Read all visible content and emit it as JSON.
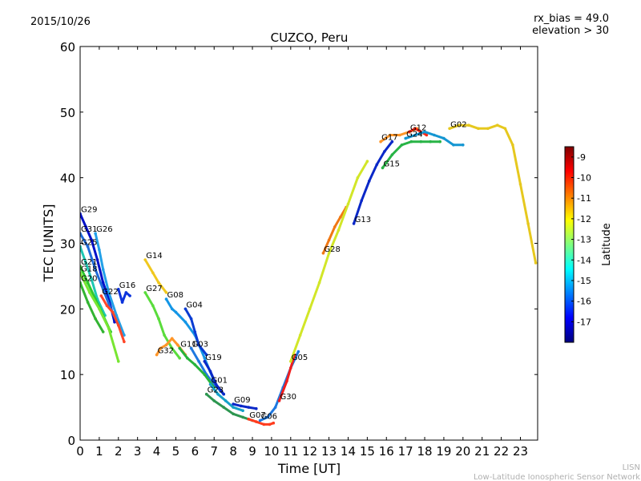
{
  "header": {
    "date": "2015/10/26",
    "rx_bias": "rx_bias = 49.0",
    "elevation": "elevation > 30"
  },
  "footer": {
    "network_short": "LISN",
    "network_full": "Low-Latitude Ionospheric Sensor Network"
  },
  "chart_data": {
    "type": "scatter",
    "title": "CUZCO, Peru",
    "xlabel": "Time [UT]",
    "ylabel": "TEC [UNITS]",
    "xlim": [
      0,
      23.9
    ],
    "ylim": [
      0,
      60
    ],
    "xticks": [
      "0",
      "1",
      "2",
      "3",
      "4",
      "5",
      "6",
      "7",
      "8",
      "9",
      "10",
      "11",
      "12",
      "13",
      "14",
      "15",
      "16",
      "17",
      "18",
      "19",
      "20",
      "21",
      "22",
      "23"
    ],
    "yticks": [
      "0",
      "10",
      "20",
      "30",
      "40",
      "50",
      "60"
    ],
    "grid": false,
    "colorbar": {
      "label": "Latitude",
      "range": [
        -18,
        -8.5
      ],
      "ticks": [
        "-9",
        "-10",
        "-11",
        "-12",
        "-13",
        "-14",
        "-15",
        "-16",
        "-17"
      ],
      "colormap": [
        "#00007f",
        "#0000ff",
        "#007fff",
        "#00ffff",
        "#7fff7f",
        "#ffff00",
        "#ff7f00",
        "#ff0000",
        "#7f0000"
      ]
    },
    "series": [
      {
        "name": "G29",
        "color": "#0010c8",
        "points": [
          [
            0.0,
            34.5
          ],
          [
            0.3,
            32.5
          ],
          [
            0.6,
            30.5
          ],
          [
            0.9,
            27.5
          ],
          [
            1.2,
            24.0
          ],
          [
            1.5,
            21.5
          ],
          [
            1.8,
            18.0
          ]
        ]
      },
      {
        "name": "G31",
        "color": "#1f6cd9",
        "points": [
          [
            0.0,
            31.5
          ],
          [
            0.4,
            29.5
          ],
          [
            0.8,
            26.0
          ],
          [
            1.2,
            23.0
          ],
          [
            1.6,
            20.0
          ],
          [
            2.0,
            17.5
          ]
        ]
      },
      {
        "name": "G26",
        "color": "#22a0e8",
        "points": [
          [
            0.8,
            31.5
          ],
          [
            1.0,
            29.0
          ],
          [
            1.2,
            26.0
          ],
          [
            1.5,
            22.5
          ],
          [
            1.9,
            19.0
          ],
          [
            2.3,
            16.0
          ]
        ]
      },
      {
        "name": "G25",
        "color": "#1ec8b4",
        "points": [
          [
            0.0,
            29.5
          ],
          [
            0.3,
            27.0
          ],
          [
            0.6,
            24.5
          ],
          [
            0.9,
            21.5
          ],
          [
            1.3,
            19.0
          ]
        ]
      },
      {
        "name": "G21",
        "color": "#2dc82d",
        "points": [
          [
            0.0,
            26.5
          ],
          [
            0.4,
            24.0
          ],
          [
            0.8,
            21.5
          ],
          [
            1.2,
            19.0
          ],
          [
            1.6,
            16.5
          ]
        ]
      },
      {
        "name": "G18",
        "color": "#78e632",
        "points": [
          [
            0.0,
            25.5
          ],
          [
            0.5,
            22.5
          ],
          [
            1.0,
            20.0
          ],
          [
            1.5,
            17.0
          ],
          [
            2.0,
            12.0
          ]
        ]
      },
      {
        "name": "G20",
        "color": "#32b432",
        "points": [
          [
            0.0,
            24.0
          ],
          [
            0.4,
            21.0
          ],
          [
            0.8,
            18.5
          ],
          [
            1.2,
            16.5
          ]
        ]
      },
      {
        "name": "G22",
        "color": "#ff4628",
        "points": [
          [
            1.1,
            22.0
          ],
          [
            1.4,
            20.5
          ],
          [
            1.7,
            19.5
          ],
          [
            2.0,
            17.5
          ],
          [
            2.3,
            15.0
          ]
        ]
      },
      {
        "name": "G16",
        "color": "#0a32dc",
        "points": [
          [
            2.0,
            23.0
          ],
          [
            2.2,
            21.0
          ],
          [
            2.4,
            22.5
          ],
          [
            2.6,
            22.0
          ]
        ]
      },
      {
        "name": "G14",
        "color": "#f0c81e",
        "points": [
          [
            3.4,
            27.5
          ],
          [
            3.8,
            25.5
          ],
          [
            4.1,
            24.0
          ],
          [
            4.5,
            22.5
          ]
        ]
      },
      {
        "name": "G27",
        "color": "#5adc3c",
        "points": [
          [
            3.4,
            22.5
          ],
          [
            3.8,
            20.5
          ],
          [
            4.1,
            18.5
          ],
          [
            4.4,
            16.0
          ],
          [
            4.8,
            14.0
          ],
          [
            5.2,
            12.5
          ]
        ]
      },
      {
        "name": "G32",
        "color": "#ff9628",
        "points": [
          [
            4.0,
            13.0
          ],
          [
            4.2,
            14.0
          ],
          [
            4.5,
            14.5
          ],
          [
            4.8,
            15.5
          ],
          [
            5.1,
            14.5
          ],
          [
            5.5,
            13.0
          ]
        ]
      },
      {
        "name": "G08",
        "color": "#1496e6",
        "points": [
          [
            4.5,
            21.5
          ],
          [
            4.8,
            20.0
          ],
          [
            5.0,
            19.5
          ],
          [
            5.5,
            18.0
          ],
          [
            6.0,
            16.0
          ],
          [
            6.5,
            12.5
          ],
          [
            7.0,
            9.0
          ]
        ]
      },
      {
        "name": "G04",
        "color": "#0a3cd2",
        "points": [
          [
            5.5,
            20.0
          ],
          [
            5.8,
            18.5
          ],
          [
            6.0,
            16.5
          ],
          [
            6.2,
            14.5
          ],
          [
            6.6,
            13.0
          ]
        ]
      },
      {
        "name": "G03",
        "color": "#1e78e0",
        "points": [
          [
            5.8,
            14.0
          ],
          [
            6.2,
            12.0
          ],
          [
            6.6,
            10.0
          ],
          [
            7.0,
            8.5
          ],
          [
            7.5,
            7.0
          ]
        ]
      },
      {
        "name": "G11",
        "color": "#28b43c",
        "points": [
          [
            5.2,
            14.0
          ],
          [
            5.6,
            12.5
          ],
          [
            6.0,
            11.5
          ],
          [
            6.5,
            10.0
          ],
          [
            7.0,
            8.0
          ]
        ]
      },
      {
        "name": "G19",
        "color": "#0a28c8",
        "points": [
          [
            6.5,
            12.0
          ],
          [
            6.8,
            10.5
          ],
          [
            7.1,
            8.5
          ],
          [
            7.5,
            7.0
          ]
        ]
      },
      {
        "name": "G01",
        "color": "#14a0c8",
        "points": [
          [
            6.8,
            8.5
          ],
          [
            7.2,
            7.0
          ],
          [
            7.6,
            6.0
          ],
          [
            8.0,
            5.0
          ],
          [
            8.5,
            4.5
          ]
        ]
      },
      {
        "name": "G23",
        "color": "#2d9650",
        "points": [
          [
            6.6,
            7.0
          ],
          [
            7.0,
            6.0
          ],
          [
            7.5,
            5.0
          ],
          [
            8.0,
            4.0
          ],
          [
            8.5,
            3.5
          ],
          [
            9.0,
            3.0
          ]
        ]
      },
      {
        "name": "G09",
        "color": "#0a28c8",
        "points": [
          [
            8.0,
            5.5
          ],
          [
            8.4,
            5.2
          ],
          [
            8.8,
            5.0
          ],
          [
            9.2,
            4.8
          ]
        ]
      },
      {
        "name": "G07",
        "color": "#ff3c1e",
        "points": [
          [
            8.8,
            3.2
          ],
          [
            9.2,
            2.8
          ],
          [
            9.6,
            2.4
          ],
          [
            9.9,
            2.4
          ],
          [
            10.1,
            2.6
          ]
        ]
      },
      {
        "name": "G06",
        "color": "#1e78e0",
        "points": [
          [
            9.4,
            3.0
          ],
          [
            9.8,
            3.5
          ],
          [
            10.2,
            5.0
          ],
          [
            10.6,
            8.0
          ],
          [
            11.0,
            11.0
          ],
          [
            11.4,
            13.5
          ]
        ]
      },
      {
        "name": "G30",
        "color": "#f01e1e",
        "points": [
          [
            10.4,
            6.0
          ],
          [
            10.8,
            9.0
          ],
          [
            11.0,
            11.0
          ],
          [
            11.2,
            13.0
          ]
        ]
      },
      {
        "name": "G28",
        "color": "#f07814",
        "points": [
          [
            12.7,
            28.5
          ],
          [
            13.0,
            30.5
          ],
          [
            13.3,
            32.5
          ],
          [
            13.6,
            34.0
          ],
          [
            13.9,
            35.5
          ]
        ]
      },
      {
        "name": "G05",
        "color": "#d2e628",
        "points": [
          [
            11.0,
            12.0
          ],
          [
            11.5,
            16.0
          ],
          [
            12.0,
            20.0
          ],
          [
            12.5,
            24.0
          ],
          [
            13.0,
            28.5
          ],
          [
            13.5,
            32.0
          ],
          [
            14.0,
            36.0
          ],
          [
            14.5,
            40.0
          ],
          [
            15.0,
            42.5
          ]
        ]
      },
      {
        "name": "G13",
        "color": "#0a28c8",
        "points": [
          [
            14.3,
            33.0
          ],
          [
            14.7,
            36.5
          ],
          [
            15.1,
            39.5
          ],
          [
            15.5,
            42.0
          ],
          [
            15.9,
            44.0
          ],
          [
            16.3,
            45.5
          ]
        ]
      },
      {
        "name": "G17",
        "color": "#ff9628",
        "points": [
          [
            15.7,
            45.5
          ],
          [
            16.2,
            46.5
          ],
          [
            16.7,
            46.5
          ],
          [
            17.2,
            47.0
          ],
          [
            17.6,
            47.5
          ]
        ]
      },
      {
        "name": "G12",
        "color": "#ff2814",
        "points": [
          [
            17.2,
            47.0
          ],
          [
            17.5,
            47.5
          ],
          [
            17.8,
            47.0
          ],
          [
            18.1,
            46.5
          ]
        ]
      },
      {
        "name": "G15",
        "color": "#28b446",
        "points": [
          [
            15.8,
            41.5
          ],
          [
            16.3,
            43.5
          ],
          [
            16.8,
            45.0
          ],
          [
            17.3,
            45.5
          ],
          [
            17.8,
            45.5
          ],
          [
            18.3,
            45.5
          ],
          [
            18.8,
            45.5
          ]
        ]
      },
      {
        "name": "G24",
        "color": "#1496d2",
        "points": [
          [
            17.0,
            46.0
          ],
          [
            17.5,
            46.5
          ],
          [
            18.0,
            47.0
          ],
          [
            18.5,
            46.5
          ],
          [
            19.0,
            46.0
          ],
          [
            19.5,
            45.0
          ],
          [
            20.0,
            45.0
          ]
        ]
      },
      {
        "name": "G02",
        "color": "#e6c81e",
        "points": [
          [
            19.3,
            47.5
          ],
          [
            19.8,
            48.0
          ],
          [
            20.3,
            48.0
          ],
          [
            20.8,
            47.5
          ],
          [
            21.3,
            47.5
          ],
          [
            21.8,
            48.0
          ],
          [
            22.2,
            47.5
          ],
          [
            22.6,
            45.0
          ],
          [
            23.0,
            39.0
          ],
          [
            23.4,
            33.0
          ],
          [
            23.8,
            27.0
          ]
        ]
      }
    ]
  }
}
